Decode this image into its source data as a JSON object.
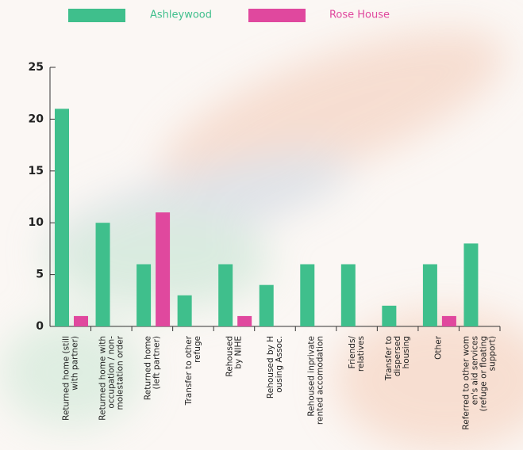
{
  "chart_data": {
    "type": "bar",
    "categories": [
      [
        "Returned home (still",
        "with partner)"
      ],
      [
        "Returned home with",
        "occupation / non-",
        "molestation order"
      ],
      [
        "Returned home",
        "(left partner)"
      ],
      [
        "Transfer to other",
        "refuge"
      ],
      [
        "Rehoused",
        "by NIHE"
      ],
      [
        "Rehoused by H",
        "ousing Assoc."
      ],
      [
        "Rehoused inprivate",
        "rented accomodation"
      ],
      [
        "Friends/",
        "relatives"
      ],
      [
        "Transfer to",
        "dispersed",
        "housing"
      ],
      [
        "Other"
      ],
      [
        "Referred to other wom",
        "en's aid services",
        "(refuge or floating",
        "support)"
      ]
    ],
    "series": [
      {
        "name": "Ashleywood",
        "color": "#3fbf8c",
        "values": [
          21,
          10,
          6,
          3,
          6,
          4,
          6,
          6,
          2,
          6,
          8
        ]
      },
      {
        "name": "Rose House",
        "color": "#e0489e",
        "values": [
          1,
          0,
          11,
          0,
          1,
          0,
          0,
          0,
          0,
          1,
          0
        ]
      }
    ],
    "ylim": [
      0,
      25
    ],
    "yticks": [
      0,
      5,
      10,
      15,
      20,
      25
    ]
  }
}
